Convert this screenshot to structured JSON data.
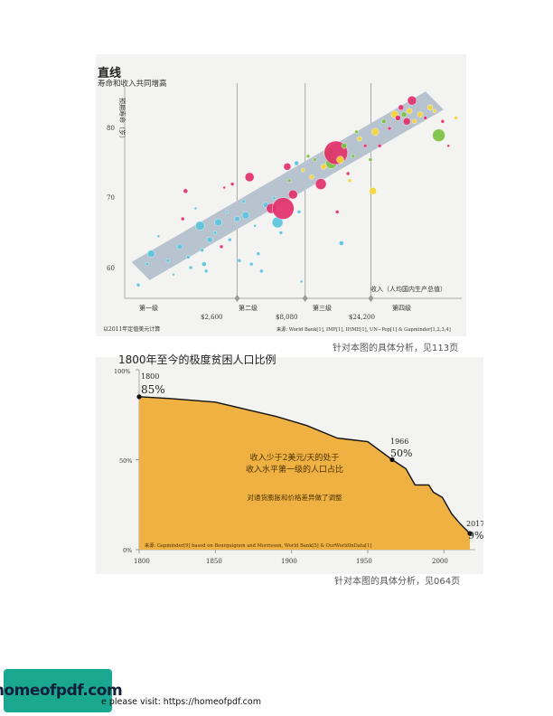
{
  "chart1": {
    "title": "直线",
    "subtitle": "寿命和收入共同增高",
    "ylabel": "预期寿命（岁）",
    "xlabel": "收入（人均国内生产总值）",
    "yticks": [
      "80",
      "70",
      "60"
    ],
    "level_labels": [
      "第一级",
      "第二级",
      "第三级",
      "第四级"
    ],
    "threshold_labels": [
      "$2,600",
      "$8,080",
      "$24,200"
    ],
    "note_left": "以2011年定值美元计算",
    "source": "来源: World Bank[1], IMF[1], IHME[1], UN−Pop[1] & Gapminder[1,2,3,4]",
    "caption": "针对本图的具体分析，见113页"
  },
  "chart2": {
    "title": "1800年至今的极度贫困人口比例",
    "yticks": [
      "100%",
      "50%",
      "0%"
    ],
    "xticks": [
      "1800",
      "1850",
      "1900",
      "1950",
      "2000"
    ],
    "point_labels": [
      {
        "year": "1800",
        "value": "85%"
      },
      {
        "year": "1966",
        "value": "50%"
      },
      {
        "year": "2017",
        "value": "9%"
      }
    ],
    "center_text_1": "收入少于2美元/天的处于",
    "center_text_2": "收入水平第一级的人口占比",
    "center_text_3": "对通货膨胀和价格差异做了调整",
    "source": "来源: Gapminder[9] based on Bourguignon and Morrisson, World Bank[5] & OurWorldInData[1]",
    "caption": "针对本图的具体分析，见064页"
  },
  "chart_data": [
    {
      "type": "scatter",
      "title": "直线",
      "subtitle": "寿命和收入共同增高",
      "xlabel": "收入（人均国内生产总值）",
      "ylabel": "预期寿命（岁）",
      "x_scale": "log",
      "ylim": [
        57,
        84
      ],
      "thresholds": [
        2600,
        8080,
        24200
      ],
      "colors": {
        "blue": "#5bc3dc",
        "red": "#e3306b",
        "green": "#7cc242",
        "yellow": "#f5d532",
        "band": "#b7c4d0"
      },
      "points": [
        {
          "x": 500,
          "y": 57.5,
          "r": 2,
          "c": "blue"
        },
        {
          "x": 620,
          "y": 62,
          "r": 4,
          "c": "blue"
        },
        {
          "x": 580,
          "y": 60.5,
          "r": 2,
          "c": "blue"
        },
        {
          "x": 700,
          "y": 64.5,
          "r": 1.5,
          "c": "blue"
        },
        {
          "x": 820,
          "y": 61,
          "r": 2,
          "c": "blue"
        },
        {
          "x": 900,
          "y": 59,
          "r": 1.5,
          "c": "blue"
        },
        {
          "x": 1000,
          "y": 63,
          "r": 3,
          "c": "blue"
        },
        {
          "x": 1050,
          "y": 67,
          "r": 2,
          "c": "red"
        },
        {
          "x": 1100,
          "y": 71,
          "r": 2.5,
          "c": "red"
        },
        {
          "x": 1150,
          "y": 61.5,
          "r": 2,
          "c": "blue"
        },
        {
          "x": 1200,
          "y": 60,
          "r": 2,
          "c": "blue"
        },
        {
          "x": 1300,
          "y": 68.5,
          "r": 1.5,
          "c": "blue"
        },
        {
          "x": 1400,
          "y": 66,
          "r": 5,
          "c": "blue"
        },
        {
          "x": 1450,
          "y": 62.5,
          "r": 2,
          "c": "blue"
        },
        {
          "x": 1500,
          "y": 60.5,
          "r": 2.5,
          "c": "blue"
        },
        {
          "x": 1550,
          "y": 59.5,
          "r": 2,
          "c": "blue"
        },
        {
          "x": 1650,
          "y": 64,
          "r": 3,
          "c": "blue"
        },
        {
          "x": 1800,
          "y": 65,
          "r": 2,
          "c": "blue"
        },
        {
          "x": 1900,
          "y": 66.5,
          "r": 4,
          "c": "blue"
        },
        {
          "x": 2000,
          "y": 63,
          "r": 2,
          "c": "red"
        },
        {
          "x": 2100,
          "y": 71.5,
          "r": 1.5,
          "c": "red"
        },
        {
          "x": 2200,
          "y": 68,
          "r": 1.5,
          "c": "blue"
        },
        {
          "x": 2300,
          "y": 64,
          "r": 2,
          "c": "blue"
        },
        {
          "x": 2400,
          "y": 72,
          "r": 2,
          "c": "red"
        },
        {
          "x": 2600,
          "y": 67,
          "r": 3,
          "c": "blue"
        },
        {
          "x": 2700,
          "y": 61,
          "r": 2,
          "c": "blue"
        },
        {
          "x": 2900,
          "y": 69.5,
          "r": 2,
          "c": "blue"
        },
        {
          "x": 3000,
          "y": 67.5,
          "r": 4,
          "c": "blue"
        },
        {
          "x": 3200,
          "y": 73,
          "r": 5,
          "c": "red"
        },
        {
          "x": 3300,
          "y": 60.5,
          "r": 2,
          "c": "blue"
        },
        {
          "x": 3500,
          "y": 66,
          "r": 1.5,
          "c": "blue"
        },
        {
          "x": 3700,
          "y": 62,
          "r": 2,
          "c": "blue"
        },
        {
          "x": 3900,
          "y": 59.5,
          "r": 2,
          "c": "blue"
        },
        {
          "x": 4200,
          "y": 69,
          "r": 3,
          "c": "blue"
        },
        {
          "x": 4600,
          "y": 68.5,
          "r": 5.5,
          "c": "red"
        },
        {
          "x": 4800,
          "y": 70,
          "r": 2,
          "c": "blue"
        },
        {
          "x": 5100,
          "y": 66.5,
          "r": 6,
          "c": "blue"
        },
        {
          "x": 5600,
          "y": 68.5,
          "r": 12,
          "c": "red"
        },
        {
          "x": 5400,
          "y": 65,
          "r": 2,
          "c": "blue"
        },
        {
          "x": 6000,
          "y": 74.5,
          "r": 4,
          "c": "red"
        },
        {
          "x": 6200,
          "y": 72.5,
          "r": 2,
          "c": "green"
        },
        {
          "x": 6600,
          "y": 70.5,
          "r": 5,
          "c": "red"
        },
        {
          "x": 7000,
          "y": 75,
          "r": 2.5,
          "c": "blue"
        },
        {
          "x": 7300,
          "y": 68,
          "r": 2,
          "c": "blue"
        },
        {
          "x": 7600,
          "y": 58,
          "r": 1.5,
          "c": "blue"
        },
        {
          "x": 7800,
          "y": 74,
          "r": 2,
          "c": "yellow"
        },
        {
          "x": 8500,
          "y": 76,
          "r": 2,
          "c": "green"
        },
        {
          "x": 9000,
          "y": 73,
          "r": 2.5,
          "c": "yellow"
        },
        {
          "x": 9500,
          "y": 75.5,
          "r": 2,
          "c": "green"
        },
        {
          "x": 10500,
          "y": 72,
          "r": 6,
          "c": "red"
        },
        {
          "x": 11000,
          "y": 74.5,
          "r": 3,
          "c": "yellow"
        },
        {
          "x": 11500,
          "y": 77,
          "r": 2,
          "c": "green"
        },
        {
          "x": 12000,
          "y": 76.5,
          "r": 6,
          "c": "green"
        },
        {
          "x": 12500,
          "y": 75,
          "r": 6,
          "c": "green"
        },
        {
          "x": 13500,
          "y": 76.5,
          "r": 13,
          "c": "red"
        },
        {
          "x": 14500,
          "y": 75.5,
          "r": 4,
          "c": "yellow"
        },
        {
          "x": 15500,
          "y": 77.5,
          "r": 3,
          "c": "green"
        },
        {
          "x": 14800,
          "y": 63.5,
          "r": 2.5,
          "c": "blue"
        },
        {
          "x": 13800,
          "y": 68,
          "r": 2,
          "c": "red"
        },
        {
          "x": 16500,
          "y": 73.5,
          "r": 2,
          "c": "red"
        },
        {
          "x": 17000,
          "y": 72.5,
          "r": 2,
          "c": "yellow"
        },
        {
          "x": 18000,
          "y": 76,
          "r": 2,
          "c": "green"
        },
        {
          "x": 19000,
          "y": 79.5,
          "r": 2,
          "c": "green"
        },
        {
          "x": 20000,
          "y": 78.5,
          "r": 2.5,
          "c": "yellow"
        },
        {
          "x": 22000,
          "y": 77.5,
          "r": 2,
          "c": "red"
        },
        {
          "x": 24000,
          "y": 75.5,
          "r": 2,
          "c": "green"
        },
        {
          "x": 25000,
          "y": 71,
          "r": 4,
          "c": "yellow"
        },
        {
          "x": 26000,
          "y": 79.5,
          "r": 4,
          "c": "yellow"
        },
        {
          "x": 28000,
          "y": 77.5,
          "r": 2,
          "c": "red"
        },
        {
          "x": 30000,
          "y": 81,
          "r": 2.5,
          "c": "green"
        },
        {
          "x": 33000,
          "y": 80,
          "r": 2,
          "c": "red"
        },
        {
          "x": 36000,
          "y": 82,
          "r": 4,
          "c": "yellow"
        },
        {
          "x": 38000,
          "y": 81.5,
          "r": 3,
          "c": "red"
        },
        {
          "x": 40000,
          "y": 83,
          "r": 3,
          "c": "red"
        },
        {
          "x": 42000,
          "y": 82,
          "r": 3,
          "c": "green"
        },
        {
          "x": 44000,
          "y": 81,
          "r": 4,
          "c": "red"
        },
        {
          "x": 46000,
          "y": 82.5,
          "r": 3,
          "c": "yellow"
        },
        {
          "x": 48000,
          "y": 84,
          "r": 5,
          "c": "red"
        },
        {
          "x": 50000,
          "y": 81,
          "r": 2.5,
          "c": "yellow"
        },
        {
          "x": 55000,
          "y": 82,
          "r": 3,
          "c": "yellow"
        },
        {
          "x": 60000,
          "y": 81.5,
          "r": 2,
          "c": "red"
        },
        {
          "x": 65000,
          "y": 83,
          "r": 3,
          "c": "yellow"
        },
        {
          "x": 70000,
          "y": 82.5,
          "r": 2,
          "c": "yellow"
        },
        {
          "x": 75000,
          "y": 79,
          "r": 7,
          "c": "green"
        },
        {
          "x": 80000,
          "y": 81,
          "r": 2,
          "c": "red"
        },
        {
          "x": 88000,
          "y": 77.5,
          "r": 1.5,
          "c": "red"
        },
        {
          "x": 100000,
          "y": 81.5,
          "r": 2,
          "c": "yellow"
        }
      ]
    },
    {
      "type": "area",
      "title": "1800年至今的极度贫困人口比例",
      "xlim": [
        1800,
        2017
      ],
      "ylim": [
        0,
        100
      ],
      "x": [
        1800,
        1820,
        1850,
        1870,
        1890,
        1910,
        1930,
        1950,
        1966,
        1975,
        1981,
        1990,
        1993,
        1999,
        2005,
        2010,
        2017
      ],
      "y": [
        85,
        84,
        82,
        78,
        74,
        69,
        62,
        60,
        50,
        45,
        36,
        36,
        32,
        29,
        20,
        15,
        9
      ],
      "marked_points": [
        [
          1800,
          85
        ],
        [
          1966,
          50
        ],
        [
          2017,
          9
        ]
      ],
      "color": "#f0b143"
    }
  ]
}
